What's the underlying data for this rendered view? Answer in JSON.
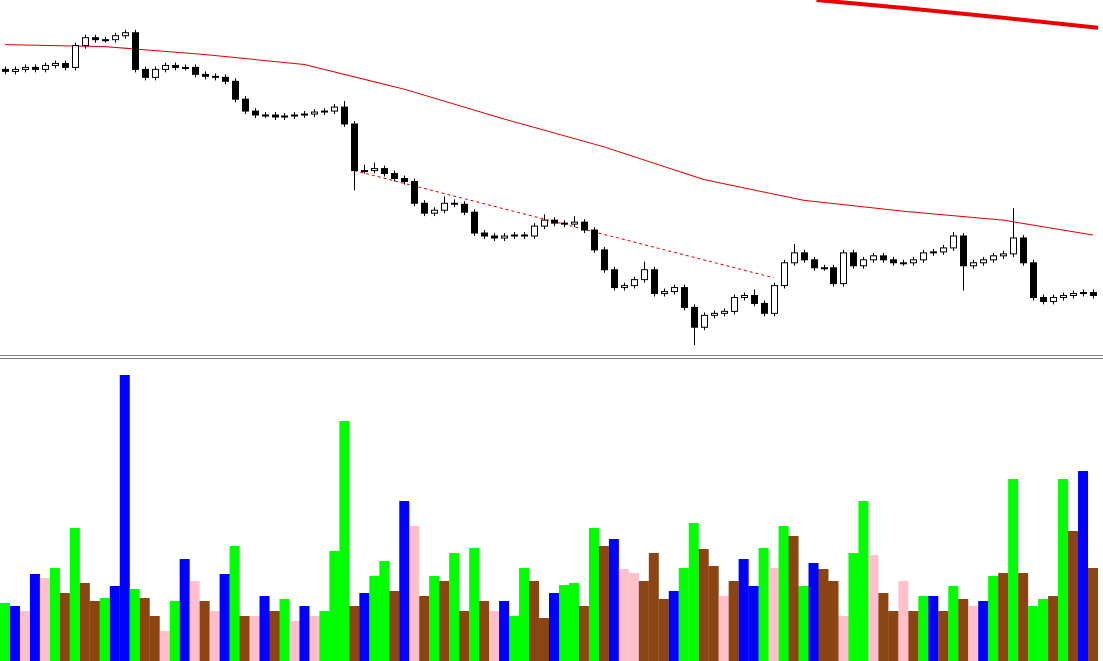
{
  "chart_data": [
    {
      "type": "candlestick",
      "xlim": [
        -0.5,
        110
      ],
      "ylim": [
        0,
        358
      ],
      "up_color": "#ffffff",
      "down_color": "#000000",
      "open": [
        288,
        286,
        288,
        290,
        288,
        292,
        294,
        290,
        312,
        320,
        318,
        318,
        322,
        325,
        288,
        280,
        288,
        292,
        290,
        290,
        283,
        281,
        280,
        276,
        258,
        246,
        242,
        242,
        240,
        241,
        242,
        243,
        245,
        246,
        250,
        233,
        186,
        186,
        188,
        183,
        178,
        175,
        153,
        143,
        146,
        153,
        152,
        144,
        123,
        120,
        118,
        120,
        121,
        120,
        130,
        136,
        133,
        132,
        134,
        126,
        106,
        86,
        68,
        70,
        76,
        86,
        62,
        64,
        68,
        48,
        28,
        40,
        42,
        44,
        58,
        60,
        52,
        42,
        70,
        93,
        103,
        96,
        88,
        88,
        72,
        103,
        90,
        96,
        100,
        96,
        93,
        93,
        96,
        103,
        104,
        108,
        120,
        90,
        93,
        96,
        100,
        102,
        118,
        93,
        58,
        54,
        58,
        60,
        62,
        63
      ],
      "high": [
        291,
        291,
        293,
        293,
        295,
        297,
        297,
        315,
        323,
        323,
        321,
        325,
        328,
        328,
        291,
        291,
        295,
        295,
        293,
        293,
        286,
        284,
        283,
        279,
        261,
        249,
        245,
        245,
        244,
        245,
        246,
        248,
        249,
        253,
        256,
        236,
        192,
        194,
        191,
        186,
        181,
        178,
        156,
        149,
        160,
        157,
        155,
        147,
        126,
        123,
        123,
        124,
        124,
        133,
        142,
        139,
        136,
        140,
        137,
        129,
        109,
        89,
        73,
        79,
        94,
        89,
        67,
        71,
        71,
        51,
        43,
        45,
        47,
        61,
        63,
        66,
        55,
        73,
        96,
        112,
        106,
        99,
        91,
        91,
        106,
        106,
        99,
        103,
        103,
        99,
        96,
        99,
        106,
        107,
        111,
        124,
        123,
        96,
        99,
        103,
        105,
        148,
        121,
        96,
        61,
        61,
        63,
        65,
        66,
        66
      ],
      "low": [
        283,
        283,
        285,
        285,
        285,
        289,
        287,
        287,
        309,
        315,
        315,
        315,
        319,
        285,
        277,
        277,
        285,
        287,
        287,
        280,
        278,
        277,
        273,
        255,
        243,
        239,
        239,
        237,
        237,
        238,
        239,
        240,
        242,
        243,
        230,
        166,
        183,
        183,
        180,
        175,
        172,
        150,
        140,
        140,
        143,
        149,
        141,
        120,
        117,
        115,
        115,
        117,
        117,
        117,
        127,
        130,
        129,
        129,
        123,
        103,
        83,
        65,
        65,
        67,
        73,
        59,
        59,
        61,
        45,
        10,
        25,
        37,
        39,
        41,
        55,
        49,
        39,
        39,
        67,
        90,
        93,
        85,
        85,
        69,
        69,
        87,
        87,
        93,
        93,
        90,
        90,
        90,
        93,
        100,
        101,
        105,
        65,
        87,
        90,
        93,
        97,
        99,
        90,
        55,
        51,
        51,
        55,
        57,
        59,
        57
      ],
      "close": [
        286,
        288,
        290,
        288,
        292,
        294,
        290,
        312,
        320,
        318,
        318,
        322,
        325,
        288,
        280,
        288,
        292,
        290,
        290,
        283,
        281,
        280,
        276,
        258,
        246,
        242,
        242,
        240,
        241,
        242,
        243,
        245,
        246,
        250,
        233,
        186,
        186,
        188,
        183,
        178,
        175,
        153,
        143,
        146,
        153,
        152,
        144,
        123,
        120,
        118,
        120,
        121,
        120,
        130,
        136,
        133,
        132,
        134,
        126,
        106,
        86,
        68,
        70,
        76,
        86,
        62,
        64,
        68,
        48,
        28,
        40,
        42,
        44,
        58,
        60,
        52,
        42,
        70,
        93,
        103,
        96,
        88,
        88,
        72,
        103,
        90,
        96,
        100,
        96,
        93,
        93,
        96,
        103,
        104,
        108,
        120,
        90,
        93,
        96,
        100,
        102,
        118,
        93,
        58,
        54,
        58,
        60,
        62,
        63,
        60
      ],
      "lines": [
        {
          "color": "#dd0000",
          "width": 1,
          "style": "solid",
          "x": [
            0,
            10,
            20,
            30,
            40,
            50,
            60,
            70,
            80,
            90,
            100,
            109
          ],
          "values": [
            313,
            311,
            303,
            293,
            268,
            238,
            210,
            177,
            156,
            145,
            136,
            121
          ]
        },
        {
          "color": "#ee0000",
          "width": 4,
          "style": "solid",
          "x": [
            81.3,
            90,
            100,
            109.5
          ],
          "values": [
            358,
            350,
            340,
            330
          ]
        },
        {
          "color": "#dd0000",
          "width": 1,
          "style": "dashed",
          "x": [
            35,
            77
          ],
          "values": [
            186,
            78
          ]
        }
      ]
    },
    {
      "type": "bar",
      "xlim": [
        -0.5,
        110
      ],
      "ylim": [
        0,
        300
      ],
      "values": [
        58,
        55,
        50,
        87,
        83,
        93,
        68,
        133,
        78,
        60,
        63,
        75,
        286,
        72,
        63,
        45,
        30,
        60,
        102,
        80,
        60,
        50,
        87,
        115,
        45,
        45,
        65,
        50,
        62,
        40,
        55,
        45,
        50,
        110,
        240,
        55,
        68,
        85,
        100,
        70,
        160,
        135,
        65,
        85,
        80,
        108,
        50,
        113,
        60,
        50,
        60,
        45,
        93,
        80,
        43,
        68,
        76,
        78,
        55,
        133,
        115,
        122,
        92,
        88,
        80,
        108,
        62,
        70,
        93,
        138,
        112,
        95,
        65,
        80,
        102,
        75,
        113,
        93,
        135,
        125,
        75,
        98,
        92,
        80,
        45,
        108,
        160,
        106,
        68,
        50,
        80,
        50,
        65,
        65,
        50,
        75,
        62,
        55,
        60,
        85,
        88,
        182,
        88,
        55,
        62,
        65,
        182,
        130,
        190,
        93
      ],
      "colors": [
        "#00ff00",
        "#0000ff",
        "#ffc0cb",
        "#0000ff",
        "#ffc0cb",
        "#00ff00",
        "#8b4513",
        "#00ff00",
        "#8b4513",
        "#8b4513",
        "#00ff00",
        "#0000ff",
        "#0000ff",
        "#00ff00",
        "#8b4513",
        "#8b4513",
        "#ffc0cb",
        "#00ff00",
        "#0000ff",
        "#ffc0cb",
        "#8b4513",
        "#ffc0cb",
        "#0000ff",
        "#00ff00",
        "#8b4513",
        "#ffc0cb",
        "#0000ff",
        "#8b4513",
        "#00ff00",
        "#ffc0cb",
        "#0000ff",
        "#ffc0cb",
        "#00ff00",
        "#00ff00",
        "#00ff00",
        "#8b4513",
        "#0000ff",
        "#00ff00",
        "#00ff00",
        "#8b4513",
        "#0000ff",
        "#ffc0cb",
        "#8b4513",
        "#00ff00",
        "#8b4513",
        "#00ff00",
        "#8b4513",
        "#00ff00",
        "#8b4513",
        "#ffc0cb",
        "#0000ff",
        "#00ff00",
        "#00ff00",
        "#8b4513",
        "#8b4513",
        "#0000ff",
        "#00ff00",
        "#00ff00",
        "#8b4513",
        "#00ff00",
        "#8b4513",
        "#0000ff",
        "#ffc0cb",
        "#ffc0cb",
        "#8b4513",
        "#8b4513",
        "#8b4513",
        "#0000ff",
        "#00ff00",
        "#00ff00",
        "#8b4513",
        "#8b4513",
        "#ffc0cb",
        "#8b4513",
        "#0000ff",
        "#0000ff",
        "#00ff00",
        "#ffc0cb",
        "#00ff00",
        "#8b4513",
        "#00ff00",
        "#0000ff",
        "#8b4513",
        "#8b4513",
        "#ffc0cb",
        "#00ff00",
        "#00ff00",
        "#ffc0cb",
        "#8b4513",
        "#8b4513",
        "#ffc0cb",
        "#8b4513",
        "#00ff00",
        "#0000ff",
        "#8b4513",
        "#00ff00",
        "#8b4513",
        "#ffc0cb",
        "#0000ff",
        "#00ff00",
        "#8b4513",
        "#00ff00",
        "#8b4513",
        "#00ff00",
        "#00ff00",
        "#8b4513",
        "#00ff00",
        "#8b4513",
        "#0000ff",
        "#8b4513"
      ]
    }
  ]
}
